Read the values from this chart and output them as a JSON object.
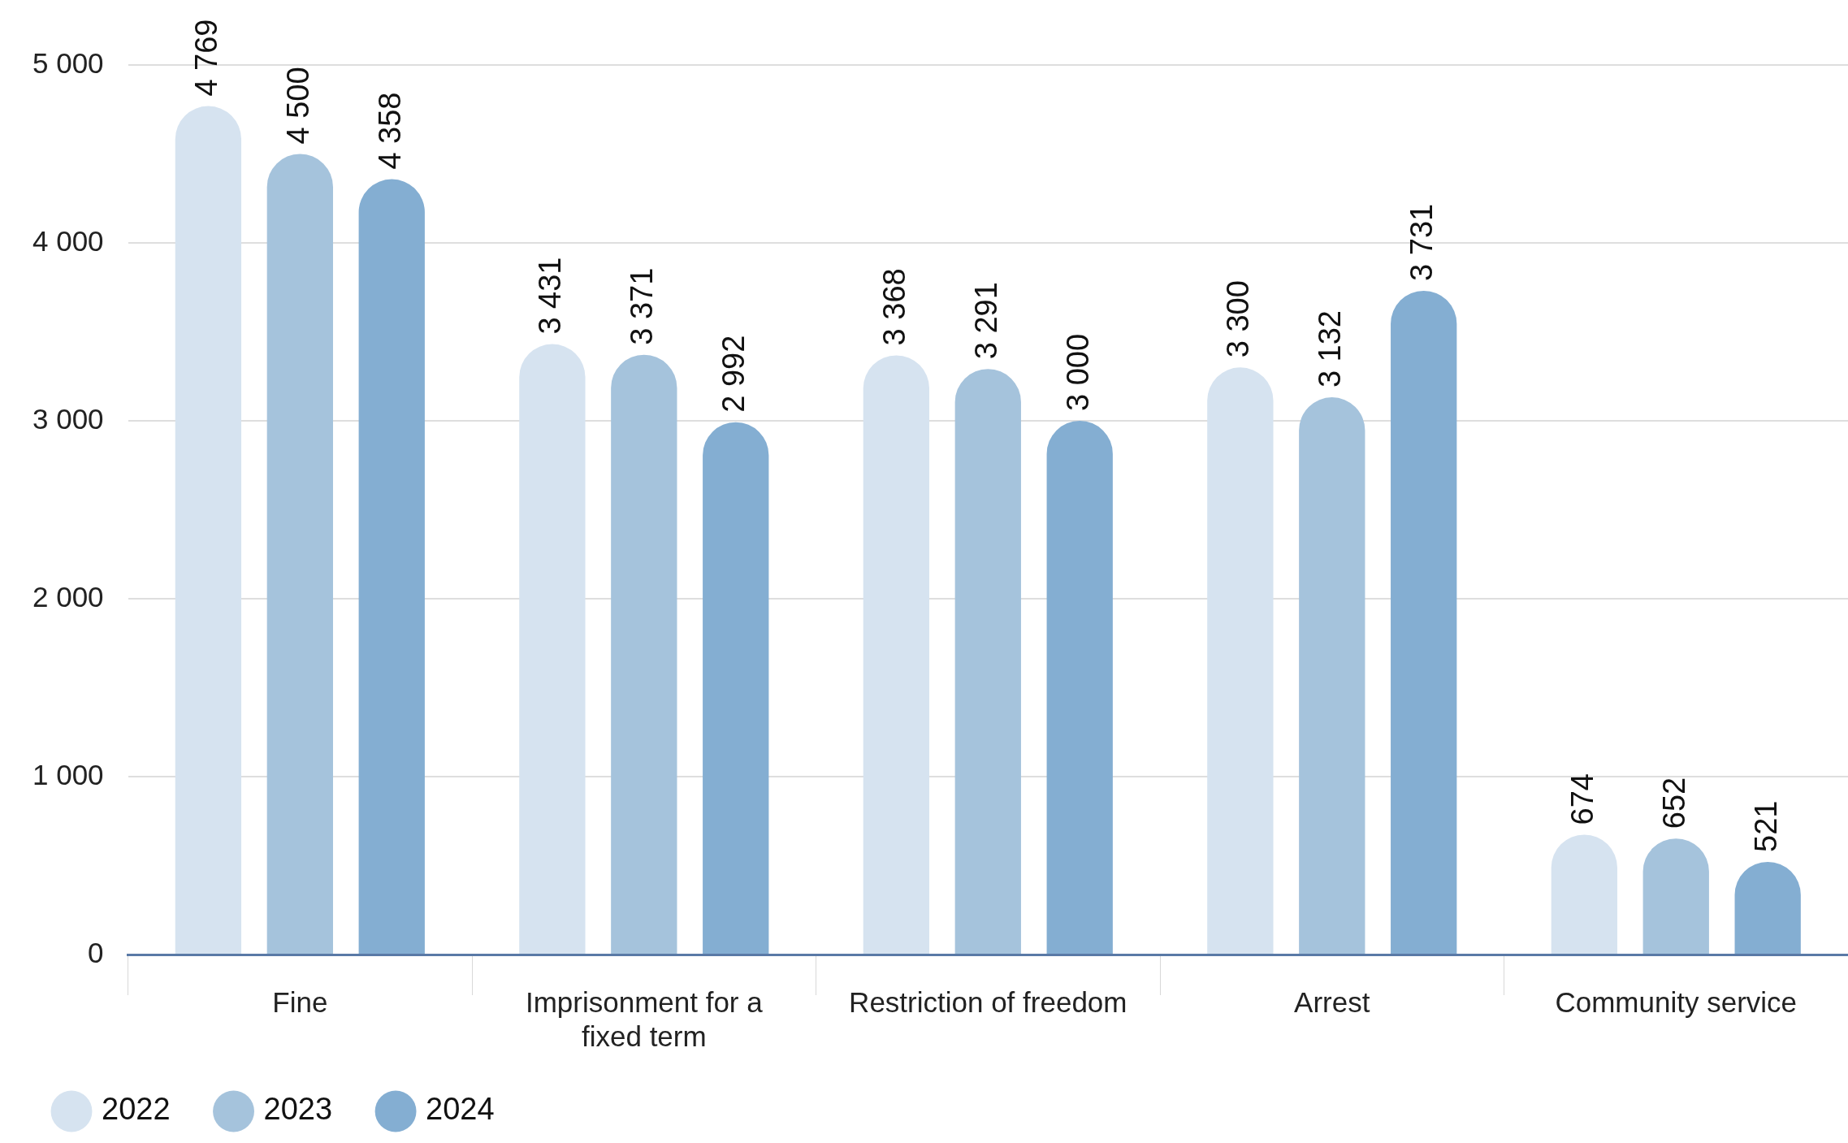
{
  "chart_data": {
    "type": "bar",
    "categories": [
      "Fine",
      "Imprisonment for a fixed term",
      "Restriction of freedom",
      "Arrest",
      "Community service"
    ],
    "series": [
      {
        "name": "2022",
        "color": "#d6e3f0",
        "values": [
          4769,
          3431,
          3368,
          3300,
          674
        ]
      },
      {
        "name": "2023",
        "color": "#a5c3dc",
        "values": [
          4500,
          3371,
          3291,
          3132,
          652
        ]
      },
      {
        "name": "2024",
        "color": "#84aed2",
        "values": [
          4358,
          2992,
          3000,
          3731,
          521
        ]
      }
    ],
    "ylim": [
      0,
      5000
    ],
    "yticks": [
      0,
      1000,
      2000,
      3000,
      4000,
      5000
    ],
    "grid": "y",
    "legend": "bottom left",
    "data_labels": true
  }
}
